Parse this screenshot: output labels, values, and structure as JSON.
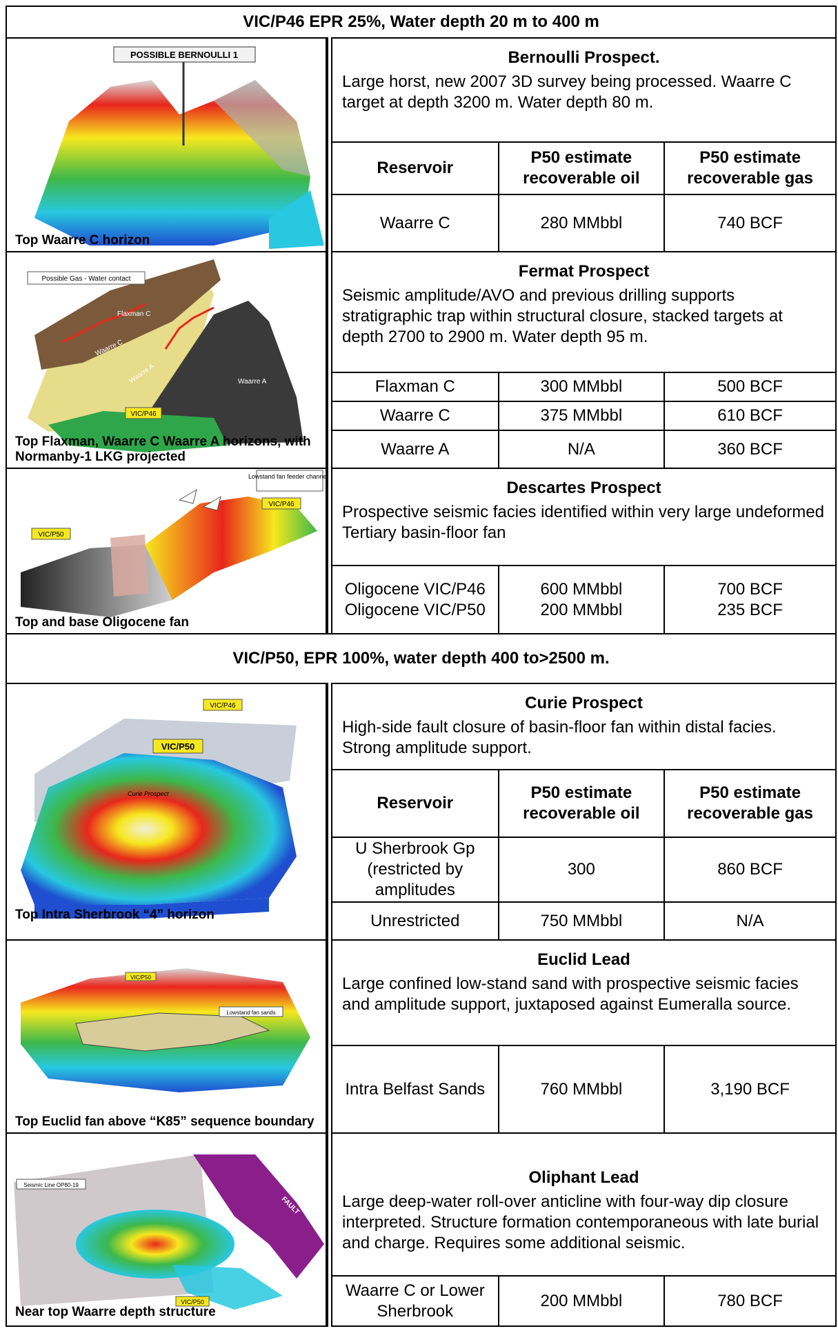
{
  "vic_p46_header": "VIC/P46 EPR 25%, Water depth 20 m to 400 m",
  "vic_p50_header": "VIC/P50, EPR 100%, water depth 400 to>2500 m.",
  "headers": {
    "reservoir": "Reservoir",
    "oil": "P50 estimate recoverable oil",
    "gas": "P50 estimate recoverable gas"
  },
  "bernoulli": {
    "title": "Bernoulli Prospect.",
    "description": "Large horst, new 2007 3D survey being processed. Waarre C target at depth 3200 m. Water depth 80 m.",
    "caption": "Top Waarre C horizon",
    "image_label": "POSSIBLE BERNOULLI 1",
    "rows": [
      {
        "reservoir": "Waarre C",
        "oil": "280 MMbbl",
        "gas": "740 BCF"
      }
    ]
  },
  "fermat": {
    "title": "Fermat Prospect",
    "description": "Seismic amplitude/AVO and previous drilling supports stratigraphic trap within  structural closure, stacked targets at depth 2700 to 2900 m. Water depth 95 m.",
    "caption": "Top Flaxman, Waarre C Waarre A horizons, with Normanby-1 LKG projected",
    "image_labels": {
      "contact": "Possible Gas - Water contact",
      "flaxman": "Flaxman C",
      "waarre_c": "Waarre C",
      "waarre_a": "Waarre A",
      "waarre_a2": "Waarre A",
      "permit": "VIC/P46"
    },
    "rows": [
      {
        "reservoir": "Flaxman C",
        "oil": "300 MMbbl",
        "gas": "500 BCF"
      },
      {
        "reservoir": "Waarre C",
        "oil": "375 MMbbl",
        "gas": "610 BCF"
      },
      {
        "reservoir": "Waarre A",
        "oil": "N/A",
        "gas": "360 BCF"
      }
    ]
  },
  "descartes": {
    "title": "Descartes Prospect",
    "description": "Prospective seismic facies identified within very large undeformed Tertiary basin-floor fan",
    "caption": "Top and base Oligocene fan",
    "image_labels": {
      "lowstand": "Lowstand fan feeder channels",
      "p46": "VIC/P46",
      "p50": "VIC/P50"
    },
    "row": {
      "reservoir_1": "Oligocene VIC/P46",
      "reservoir_2": "Oligocene VIC/P50",
      "oil_1": "600 MMbbl",
      "oil_2": "200 MMbbl",
      "gas_1": "700 BCF",
      "gas_2": "235 BCF"
    }
  },
  "curie": {
    "title": "Curie Prospect",
    "description": "High-side fault closure of basin-floor fan within distal facies. Strong amplitude support.",
    "caption": "Top Intra Sherbrook “4” horizon",
    "image_labels": {
      "p46": "VIC/P46",
      "p50": "VIC/P50",
      "prospect": "Curie Prospect"
    },
    "rows": [
      {
        "reservoir": "U Sherbrook Gp (restricted by amplitudes",
        "oil": "300",
        "gas": "860 BCF"
      },
      {
        "reservoir": "Unrestricted",
        "oil": "750 MMbbl",
        "gas": "N/A"
      }
    ]
  },
  "euclid": {
    "title": "Euclid Lead",
    "description": "Large confined low-stand sand with prospective seismic facies and amplitude support, juxtaposed against Eumeralla source.",
    "caption": "Top Euclid fan above “K85” sequence boundary",
    "image_labels": {
      "permit": "VIC/P50",
      "sands": "Lowstand fan sands"
    },
    "rows": [
      {
        "reservoir": "Intra Belfast Sands",
        "oil": "760 MMbbl",
        "gas": "3,190 BCF"
      }
    ]
  },
  "oliphant": {
    "title": "Oliphant Lead",
    "description": "Large deep-water roll-over anticline with four-way dip closure interpreted. Structure formation contemporaneous with late burial and charge. Requires some additional seismic.",
    "caption": "Near top Waarre depth structure",
    "image_labels": {
      "seismic": "Seismic Line OP80-19",
      "fault": "FAULT",
      "permit": "VIC/P50"
    },
    "rows": [
      {
        "reservoir": "Waarre C or Lower Sherbrook",
        "oil": "200 MMbbl",
        "gas": "780 BCF"
      }
    ]
  },
  "colors": {
    "red": "#e8261c",
    "yellow": "#f6e81e",
    "green": "#3cb84a",
    "cyan": "#28c8e0",
    "blue": "#1f4fd0",
    "magenta": "#8a1f8c"
  }
}
